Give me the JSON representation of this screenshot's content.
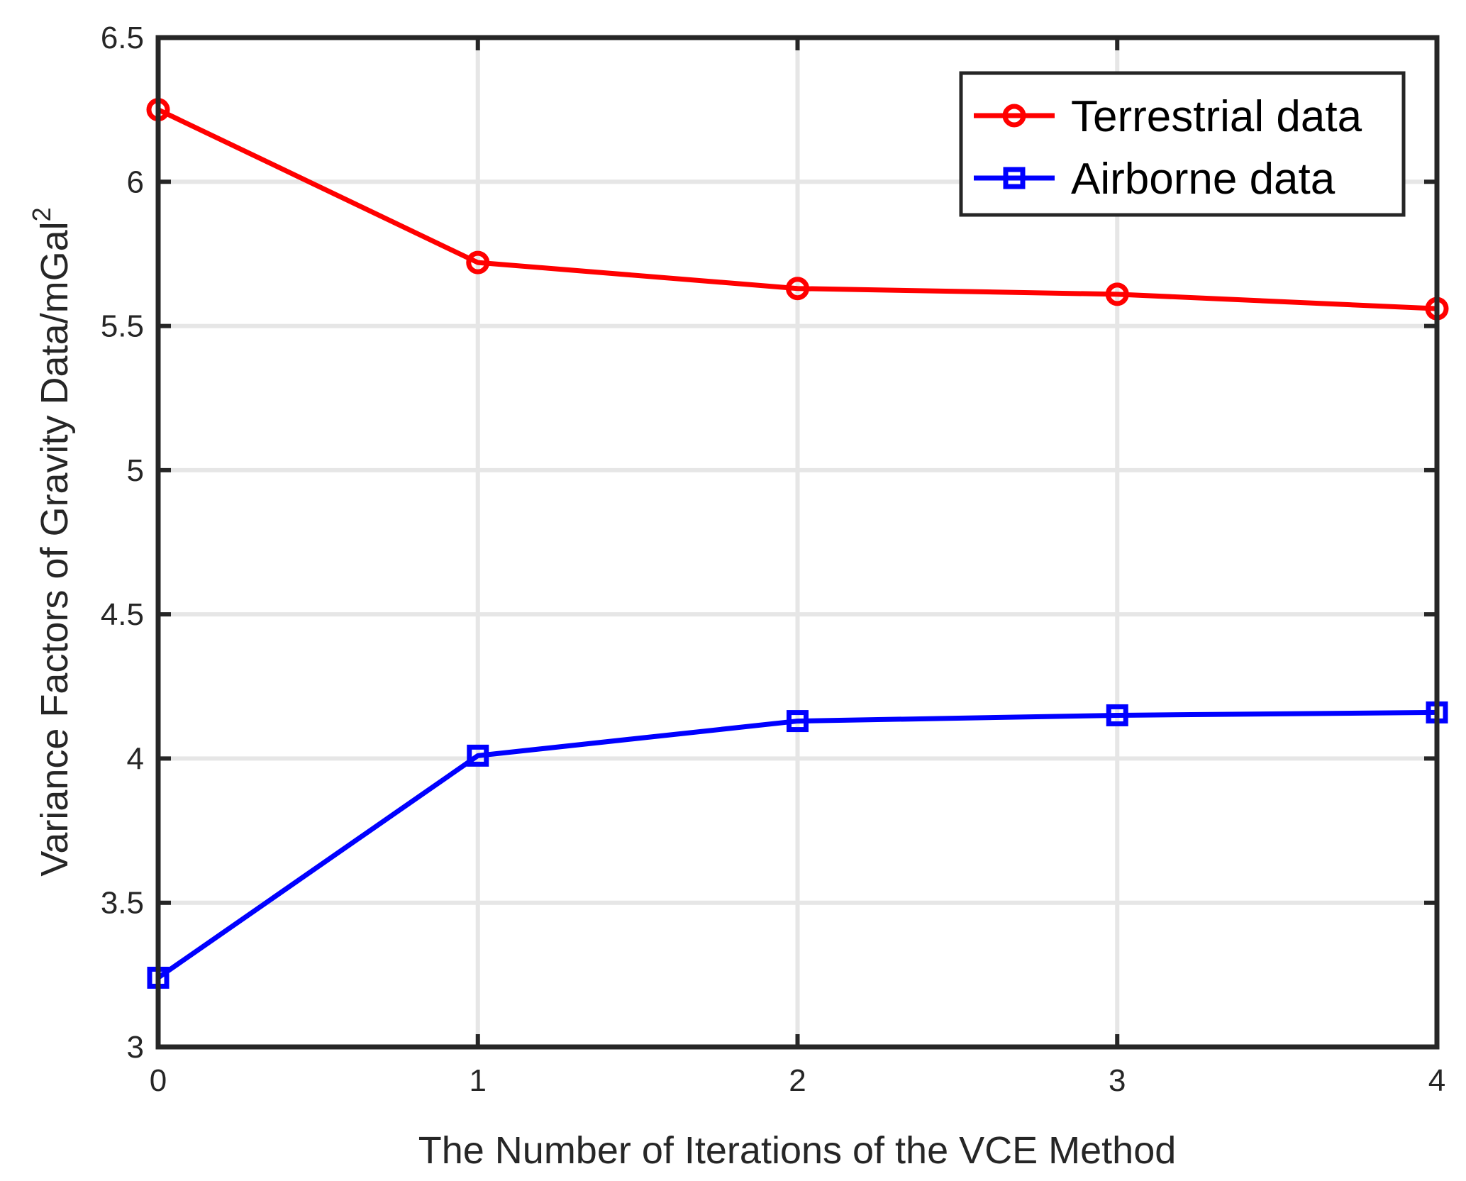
{
  "chart_data": {
    "type": "line",
    "title": "",
    "xlabel": "The Number of Iterations of the VCE Method",
    "ylabel_main": "Variance Factors of Gravity Data/mGal",
    "ylabel_sup": "2",
    "x": [
      0,
      1,
      2,
      3,
      4
    ],
    "xlim": [
      0,
      4
    ],
    "ylim": [
      3,
      6.5
    ],
    "xticks": [
      "0",
      "1",
      "2",
      "3",
      "4"
    ],
    "yticks": [
      "3",
      "3.5",
      "4",
      "4.5",
      "5",
      "5.5",
      "6",
      "6.5"
    ],
    "grid": true,
    "legend_position": "top-right",
    "series": [
      {
        "name": "Terrestrial data",
        "values": [
          6.25,
          5.72,
          5.63,
          5.61,
          5.56
        ],
        "color": "#ff0000",
        "marker": "circle"
      },
      {
        "name": "Airborne data",
        "values": [
          3.24,
          4.01,
          4.13,
          4.15,
          4.16
        ],
        "color": "#0000ff",
        "marker": "square"
      }
    ]
  }
}
